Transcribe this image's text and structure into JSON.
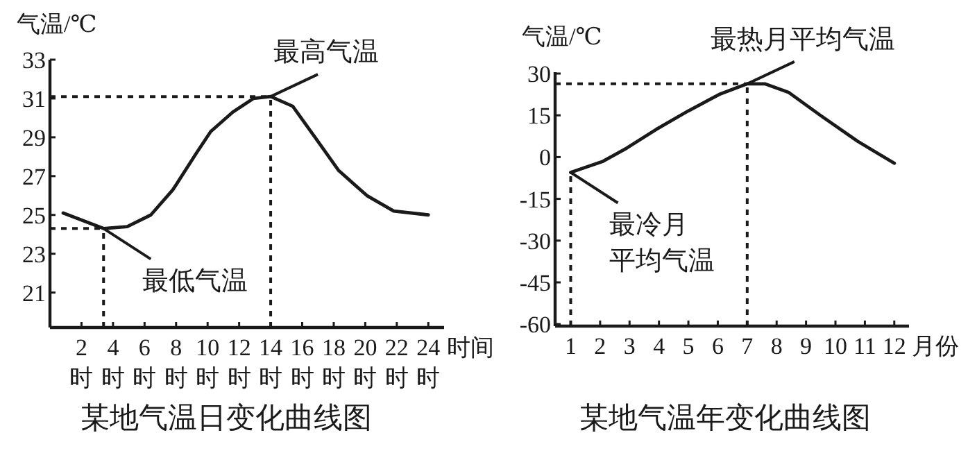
{
  "chart_data": [
    {
      "type": "line",
      "title": "某地气温日变化曲线图",
      "xlabel": "时间",
      "ylabel": "气温/℃",
      "x": [
        0.84,
        3.4,
        4.9,
        6.4,
        7.8,
        9.3,
        10.2,
        11.6,
        12.9,
        14,
        15.4,
        16.9,
        18.3,
        20.1,
        21.8,
        24
      ],
      "series": [
        {
          "color": "#1a1a1a",
          "line_style": "solid",
          "values": [
            25.1,
            24.3,
            24.4,
            25.0,
            26.3,
            28.2,
            29.3,
            30.3,
            31.0,
            31.1,
            30.6,
            28.9,
            27.3,
            26.0,
            25.2,
            25.0
          ]
        }
      ],
      "xlim": [
        0,
        25
      ],
      "ylim": [
        19.2,
        33
      ],
      "xticks": [
        {
          "value": 2,
          "label": "2时"
        },
        {
          "value": 4,
          "label": "4时"
        },
        {
          "value": 6,
          "label": "6时"
        },
        {
          "value": 8,
          "label": "8时"
        },
        {
          "value": 10,
          "label": "10时"
        },
        {
          "value": 12,
          "label": "12时"
        },
        {
          "value": 14,
          "label": "14时"
        },
        {
          "value": 16,
          "label": "16时"
        },
        {
          "value": 18,
          "label": "18时"
        },
        {
          "value": 20,
          "label": "20时"
        },
        {
          "value": 22,
          "label": "22时"
        },
        {
          "value": 24,
          "label": "24时"
        }
      ],
      "yticks": [
        21,
        23,
        25,
        27,
        29,
        31,
        33
      ],
      "ref_lines": [
        {
          "axis": "y",
          "value": 31.1,
          "line_style": "dashed",
          "color": "#1a1a1a"
        },
        {
          "axis": "x",
          "value": 14,
          "line_style": "dashed",
          "color": "#1a1a1a"
        },
        {
          "axis": "y",
          "value": 24.3,
          "line_style": "dashed",
          "color": "#1a1a1a"
        },
        {
          "axis": "x",
          "value": 3.4,
          "line_style": "dashed",
          "color": "#1a1a1a"
        }
      ],
      "annotations": [
        {
          "text": "最高气温",
          "x": 14,
          "y": 31.1
        },
        {
          "text": "最低气温",
          "x": 3.4,
          "y": 24.3
        }
      ]
    },
    {
      "type": "line",
      "title": "某地气温年变化曲线图",
      "xlabel": "月份",
      "ylabel": "气温/℃",
      "x": [
        1,
        2.1,
        2.9,
        3.9,
        5.0,
        6.05,
        7,
        7.6,
        8.4,
        9.5,
        10.75,
        12
      ],
      "series": [
        {
          "color": "#1a1a1a",
          "line_style": "solid",
          "values": [
            -5.5,
            -1.5,
            3.2,
            9.9,
            16.6,
            22.5,
            26.3,
            26.3,
            23.3,
            14.9,
            5.7,
            -2.2
          ]
        }
      ],
      "xlim": [
        0.47,
        12.5
      ],
      "ylim": [
        -60.7,
        30.5
      ],
      "xticks": [
        1,
        2,
        3,
        4,
        5,
        6,
        7,
        8,
        9,
        10,
        11,
        12
      ],
      "yticks": [
        -60,
        -45,
        -30,
        -15,
        0,
        15,
        30
      ],
      "ref_lines": [
        {
          "axis": "y",
          "value": 26.3,
          "line_style": "dashed",
          "color": "#1a1a1a"
        },
        {
          "axis": "x",
          "value": 7,
          "line_style": "dashed",
          "color": "#1a1a1a"
        },
        {
          "axis": "x",
          "value": 1,
          "line_style": "dashed",
          "color": "#1a1a1a"
        }
      ],
      "annotations": [
        {
          "text": "最热月平均气温",
          "x": 7,
          "y": 26.3
        },
        {
          "text": "最冷月平均气温",
          "x": 1,
          "y": -5.5
        }
      ]
    }
  ]
}
